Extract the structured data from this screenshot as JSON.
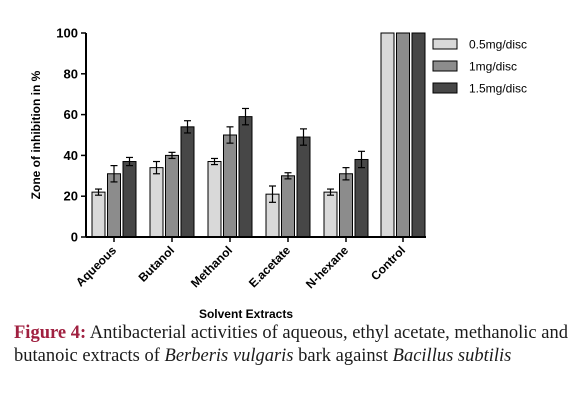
{
  "chart_data": {
    "type": "bar",
    "title": "",
    "xlabel": "Solvent Extracts",
    "ylabel": "Zone of inhibition in %",
    "ylim": [
      0,
      100
    ],
    "yticks": [
      "0",
      "20",
      "40",
      "60",
      "80",
      "100"
    ],
    "categories": [
      "Aqueous",
      "Butanol",
      "Methanol",
      "E.acetate",
      "N-hexane",
      "Control"
    ],
    "series": [
      {
        "name": "0.5mg/disc",
        "color": "#d9d9d9",
        "values": [
          22,
          34,
          37,
          21,
          22,
          100
        ],
        "errors": [
          1.5,
          3,
          1.5,
          4,
          1.5,
          0
        ]
      },
      {
        "name": "1mg/disc",
        "color": "#8c8c8c",
        "values": [
          31,
          40,
          50,
          30,
          31,
          100
        ],
        "errors": [
          4,
          1.5,
          4,
          1.5,
          3,
          0
        ]
      },
      {
        "name": "1.5mg/disc",
        "color": "#474747",
        "values": [
          37,
          54,
          59,
          49,
          38,
          100
        ],
        "errors": [
          2,
          3,
          4,
          4,
          4,
          0
        ]
      }
    ],
    "legend_position": "top-right",
    "grid": false
  },
  "caption": {
    "label": "Figure 4:",
    "text_before": "Antibacterial activities of aqueous, ethyl acetate, methanolic and butanoic extracts of",
    "species": "Berberis vulgaris",
    "text_middle": "bark against",
    "organism": "Bacillus subtilis"
  }
}
